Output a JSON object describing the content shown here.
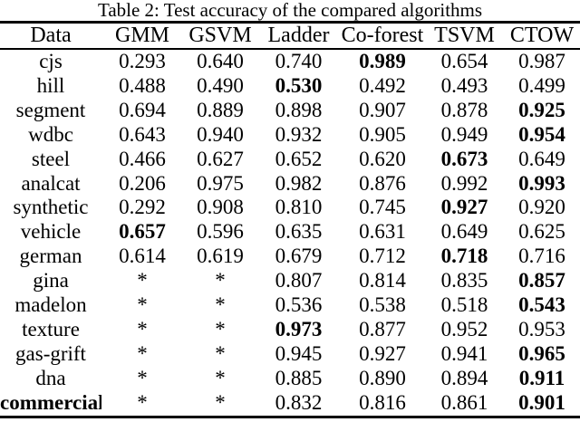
{
  "caption": "Table 2: Test accuracy of the compared algorithms",
  "colors": {
    "text": "#000000",
    "background": "#ffffff",
    "rule": "#000000"
  },
  "table": {
    "columns": [
      "Data",
      "GMM",
      "GSVM",
      "Ladder",
      "Co-forest",
      "TSVM",
      "CTOW"
    ],
    "rows": [
      {
        "label": "cjs",
        "label_bold": false,
        "values": [
          "0.293",
          "0.640",
          "0.740",
          "0.989",
          "0.654",
          "0.987"
        ],
        "bold_value_indices": [
          3
        ]
      },
      {
        "label": "hill",
        "label_bold": false,
        "values": [
          "0.488",
          "0.490",
          "0.530",
          "0.492",
          "0.493",
          "0.499"
        ],
        "bold_value_indices": [
          2
        ]
      },
      {
        "label": "segment",
        "label_bold": false,
        "values": [
          "0.694",
          "0.889",
          "0.898",
          "0.907",
          "0.878",
          "0.925"
        ],
        "bold_value_indices": [
          5
        ]
      },
      {
        "label": "wdbc",
        "label_bold": false,
        "values": [
          "0.643",
          "0.940",
          "0.932",
          "0.905",
          "0.949",
          "0.954"
        ],
        "bold_value_indices": [
          5
        ]
      },
      {
        "label": "steel",
        "label_bold": false,
        "values": [
          "0.466",
          "0.627",
          "0.652",
          "0.620",
          "0.673",
          "0.649"
        ],
        "bold_value_indices": [
          4
        ]
      },
      {
        "label": "analcat",
        "label_bold": false,
        "values": [
          "0.206",
          "0.975",
          "0.982",
          "0.876",
          "0.992",
          "0.993"
        ],
        "bold_value_indices": [
          5
        ]
      },
      {
        "label": "synthetic",
        "label_bold": false,
        "values": [
          "0.292",
          "0.908",
          "0.810",
          "0.745",
          "0.927",
          "0.920"
        ],
        "bold_value_indices": [
          4
        ]
      },
      {
        "label": "vehicle",
        "label_bold": false,
        "values": [
          "0.657",
          "0.596",
          "0.635",
          "0.631",
          "0.649",
          "0.625"
        ],
        "bold_value_indices": [
          0
        ]
      },
      {
        "label": "german",
        "label_bold": false,
        "values": [
          "0.614",
          "0.619",
          "0.679",
          "0.712",
          "0.718",
          "0.716"
        ],
        "bold_value_indices": [
          4
        ]
      },
      {
        "label": "gina",
        "label_bold": false,
        "values": [
          "*",
          "*",
          "0.807",
          "0.814",
          "0.835",
          "0.857"
        ],
        "bold_value_indices": [
          5
        ]
      },
      {
        "label": "madelon",
        "label_bold": false,
        "values": [
          "*",
          "*",
          "0.536",
          "0.538",
          "0.518",
          "0.543"
        ],
        "bold_value_indices": [
          5
        ]
      },
      {
        "label": "texture",
        "label_bold": false,
        "values": [
          "*",
          "*",
          "0.973",
          "0.877",
          "0.952",
          "0.953"
        ],
        "bold_value_indices": [
          2
        ]
      },
      {
        "label": "gas-grift",
        "label_bold": false,
        "values": [
          "*",
          "*",
          "0.945",
          "0.927",
          "0.941",
          "0.965"
        ],
        "bold_value_indices": [
          5
        ]
      },
      {
        "label": "dna",
        "label_bold": false,
        "values": [
          "*",
          "*",
          "0.885",
          "0.890",
          "0.894",
          "0.911"
        ],
        "bold_value_indices": [
          5
        ]
      },
      {
        "label": "commercial",
        "label_bold": true,
        "values": [
          "*",
          "*",
          "0.832",
          "0.816",
          "0.861",
          "0.901"
        ],
        "bold_value_indices": [
          5
        ]
      }
    ]
  }
}
